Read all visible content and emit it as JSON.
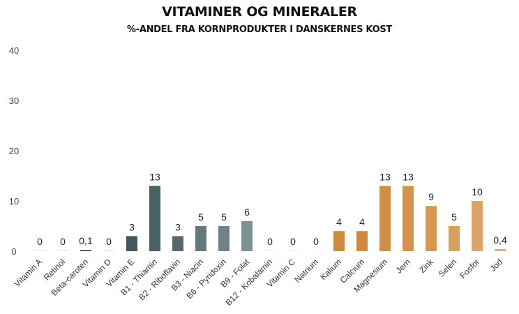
{
  "chart_data": {
    "type": "bar",
    "title": "VITAMINER OG MINERALER",
    "subtitle": "%-ANDEL FRA KORNPRODUKTER I DANSKERNES KOST",
    "xlabel": "",
    "ylabel": "",
    "ylim": [
      0,
      40
    ],
    "yticks": [
      "0",
      "10",
      "20",
      "30",
      "40"
    ],
    "ytick_values": [
      0,
      10,
      20,
      30,
      40
    ],
    "grid": false,
    "legend": "none",
    "categories": [
      "Vitamin A",
      "Retinol",
      "Beta-caroten",
      "Vitamin D",
      "Vitamin E",
      "B1 - Thiamin",
      "B2 - Riboflavin",
      "B3 - Niacin",
      "B6 - Pyridoxin",
      "B9 - Folat",
      "B12 - Kobalamin",
      "Vitamin C",
      "Natrium",
      "Kalium",
      "Calcium",
      "Magnesium",
      "Jern",
      "Zink",
      "Selen",
      "Fosfor",
      "Jod"
    ],
    "values": [
      0,
      0,
      0.1,
      0,
      3,
      13,
      3,
      5,
      5,
      6,
      0,
      0,
      0,
      4,
      4,
      13,
      13,
      9,
      5,
      10,
      0.4
    ],
    "data_labels": [
      "0",
      "0",
      "0,1",
      "0",
      "3",
      "13",
      "3",
      "5",
      "5",
      "6",
      "0",
      "0",
      "0",
      "4",
      "4",
      "13",
      "13",
      "9",
      "5",
      "10",
      "0,4"
    ],
    "colors": [
      "#d9dde0",
      "#d9dde0",
      "#4a6167",
      "#d9dde0",
      "#42585c",
      "#4b6166",
      "#55696d",
      "#657a7e",
      "#6d8286",
      "#7e9194",
      "#e2e5e6",
      "#eeeeee",
      "#eeeeee",
      "#cd8a3e",
      "#cd8a3e",
      "#d08f45",
      "#d2934c",
      "#d49853",
      "#d7a060",
      "#daa56b",
      "#dcaa72"
    ]
  }
}
